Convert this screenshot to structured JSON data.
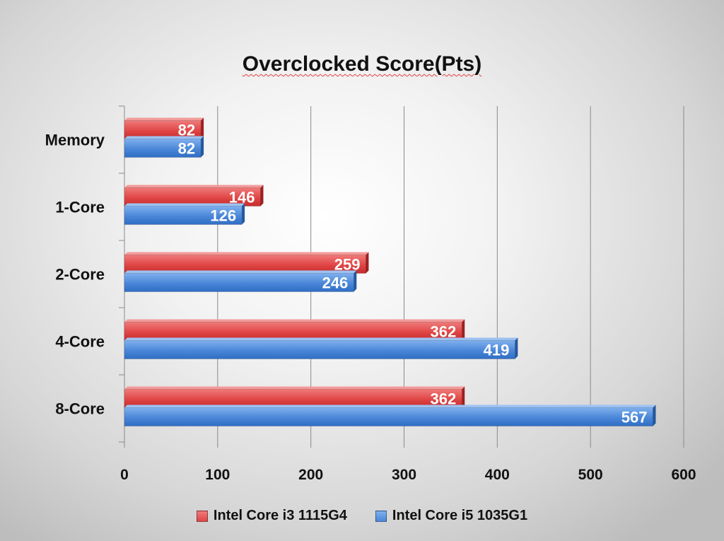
{
  "chart_data": {
    "type": "bar",
    "orientation": "horizontal",
    "title": "Overclocked Score(Pts)",
    "xlabel": "",
    "ylabel": "",
    "xlim": [
      0,
      600
    ],
    "xticks": [
      0,
      100,
      200,
      300,
      400,
      500,
      600
    ],
    "grid": true,
    "legend_position": "bottom",
    "categories": [
      "Memory",
      "1-Core",
      "2-Core",
      "4-Core",
      "8-Core"
    ],
    "series": [
      {
        "name": "Intel Core i3 1115G4",
        "color": "#e04545",
        "values": [
          82,
          146,
          259,
          362,
          362
        ]
      },
      {
        "name": "Intel Core i5 1035G1",
        "color": "#4a86d8",
        "values": [
          82,
          126,
          246,
          419,
          567
        ]
      }
    ]
  }
}
